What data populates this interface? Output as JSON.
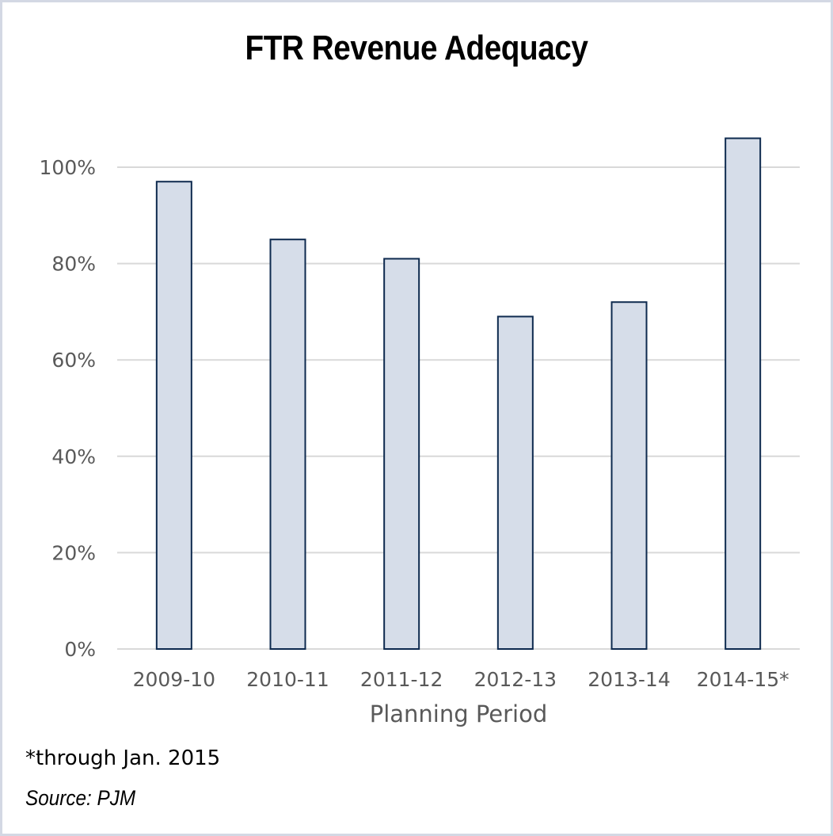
{
  "chart_data": {
    "type": "bar",
    "title": "FTR Revenue Adequacy",
    "categories": [
      "2009-10",
      "2010-11",
      "2011-12",
      "2012-13",
      "2013-14",
      "2014-15*"
    ],
    "values": [
      97,
      85,
      81,
      69,
      72,
      106
    ],
    "value_unit": "%",
    "xlabel": "Planning Period",
    "ylabel": "",
    "ylim": [
      0,
      100
    ],
    "yticks": [
      "0%",
      "20%",
      "40%",
      "60%",
      "80%",
      "100%"
    ],
    "grid": true,
    "legend": "none",
    "colors": {
      "bar_fill": "#d6dde9",
      "bar_stroke": "#0e2a4f",
      "grid": "#d9d9d9",
      "tick_text": "#595959",
      "border": "#d3d8e4"
    }
  },
  "footnote": "*through Jan. 2015",
  "source": "Source: PJM"
}
